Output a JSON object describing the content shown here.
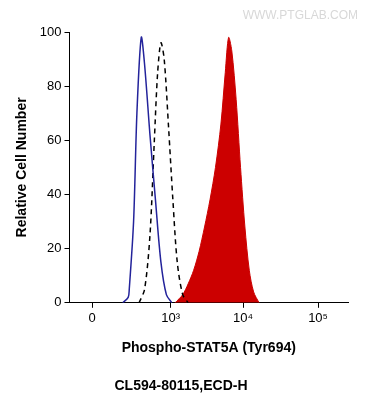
{
  "chart_data": {
    "type": "line",
    "annotations": [
      "WWW.PTGLAB.COM"
    ],
    "x_label": "Phospho-STAT5A (Tyr694)",
    "subtitle": "CL594-80115,ECD-H",
    "y_label": "Relative Cell Number",
    "log": "x",
    "grid": false,
    "xlim": [
      -100,
      250000
    ],
    "xticks": [
      0,
      {
        "value": 1000,
        "label": "10³"
      },
      {
        "value": 10000,
        "label": "10⁴"
      },
      {
        "value": 100000,
        "label": "10⁵"
      }
    ],
    "ylim": [
      0,
      100
    ],
    "yticks": [
      0,
      20,
      40,
      60,
      80,
      100
    ],
    "series": [
      {
        "type": "line",
        "color": "#23239b",
        "line_style": "solid",
        "x": [
          155,
          201,
          211,
          255,
          293,
          349,
          397,
          486,
          593,
          719,
          868,
          1043
        ],
        "values": [
          0,
          2,
          5,
          30,
          70,
          98,
          88,
          62,
          38,
          15,
          3,
          0
        ]
      },
      {
        "type": "line",
        "color": "#000000",
        "line_style": "dashed",
        "x": [
          320,
          397,
          486,
          570,
          641,
          719,
          805,
          934,
          1081,
          1250,
          1495,
          1784
        ],
        "values": [
          0,
          5,
          25,
          60,
          85,
          96,
          90,
          65,
          38,
          15,
          3,
          0
        ]
      },
      {
        "type": "area",
        "color": "#cc0000",
        "line_style": "solid",
        "x": [
          1163,
          1495,
          1784,
          2128,
          2533,
          3011,
          3573,
          4245,
          5030,
          5760,
          6390,
          7060,
          8080,
          9250,
          10590,
          12120,
          13860,
          16380
        ],
        "values": [
          0,
          3,
          7,
          12,
          19,
          28,
          38,
          50,
          66,
          85,
          98,
          93,
          75,
          50,
          28,
          12,
          4,
          0
        ]
      }
    ]
  }
}
